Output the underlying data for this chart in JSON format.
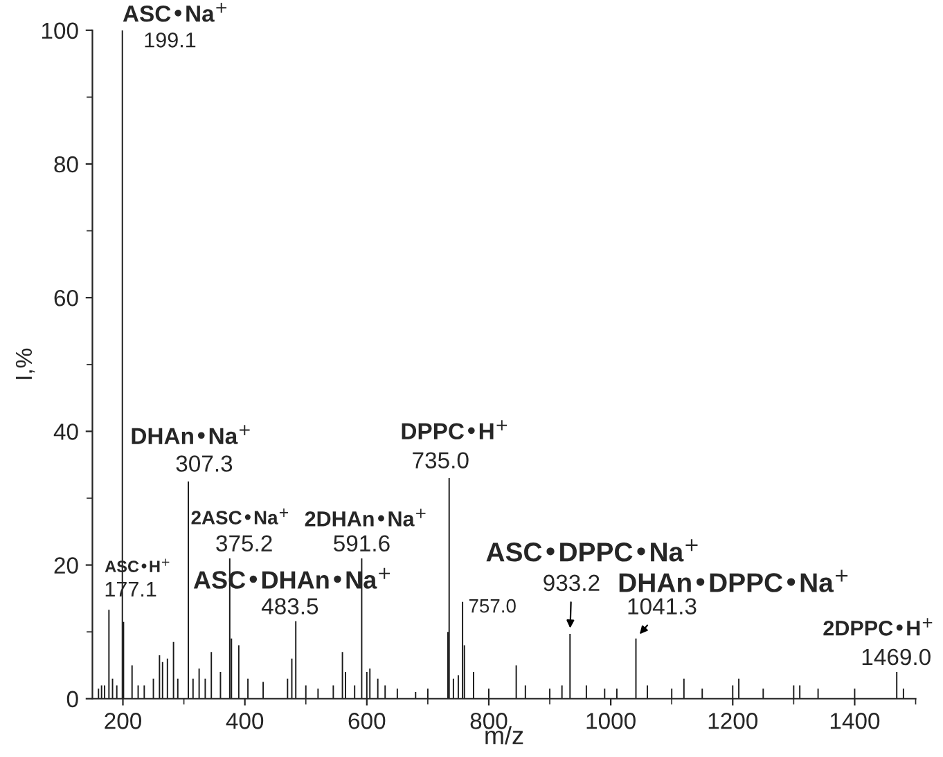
{
  "chart_data": {
    "type": "bar",
    "xlabel": "m/z",
    "ylabel": "I,%",
    "x": [
      160,
      165,
      170,
      177.1,
      183,
      190,
      199.1,
      201,
      215,
      225,
      235,
      250,
      260,
      265,
      273,
      283,
      290,
      307.3,
      315,
      325,
      335,
      345,
      360,
      375.2,
      378,
      390,
      405,
      430,
      470,
      477,
      483.5,
      500,
      520,
      545,
      560,
      565,
      580,
      591.6,
      600,
      605,
      618,
      630,
      650,
      680,
      700,
      733,
      735.0,
      742,
      750,
      757.0,
      760,
      775,
      800,
      845,
      860,
      900,
      920,
      933.2,
      960,
      990,
      1010,
      1041.3,
      1060,
      1100,
      1120,
      1150,
      1200,
      1210,
      1250,
      1300,
      1310,
      1340,
      1400,
      1469.0,
      1480
    ],
    "values": [
      1.5,
      2,
      2,
      13.3,
      3,
      2,
      100,
      11.5,
      5,
      2,
      2,
      3,
      6.5,
      5.5,
      6,
      8.5,
      3,
      32.5,
      3,
      4.5,
      3,
      7,
      4,
      21,
      9,
      8,
      3,
      2.5,
      3,
      6,
      11.6,
      2,
      1.5,
      2,
      7,
      4,
      2,
      21,
      4,
      4.5,
      3,
      2,
      1.5,
      1,
      1.5,
      10,
      33,
      3,
      3.5,
      14.5,
      8,
      4,
      1.5,
      5,
      2,
      1.5,
      2,
      9.7,
      2,
      1.5,
      1.5,
      9,
      2,
      1.5,
      3,
      1.5,
      2,
      3,
      1.5,
      2,
      2,
      1.5,
      1.5,
      4,
      1.5
    ],
    "color": "#1a1a1a",
    "xlim": [
      150,
      1500
    ],
    "xticks": [
      200,
      400,
      600,
      800,
      1000,
      1200,
      1400
    ],
    "ylim": [
      0,
      100
    ],
    "yticks": [
      0,
      20,
      40,
      60,
      80,
      100
    ],
    "grid": false,
    "legend": false,
    "annotations": [
      {
        "text": "ASC•H$^{+}$",
        "x": 177.1,
        "y": 13.3
      },
      {
        "text": "177.1",
        "x": 177.1,
        "y": 13.3
      },
      {
        "text": "ASC•Na$^{+}$",
        "x": 199.1,
        "y": 100
      },
      {
        "text": "199.1",
        "x": 199.1,
        "y": 100
      },
      {
        "text": "DHAn•Na$^{+}$",
        "x": 307.3,
        "y": 32.5
      },
      {
        "text": "307.3",
        "x": 307.3,
        "y": 32.5
      },
      {
        "text": "2ASC•Na$^{+}$",
        "x": 375.2,
        "y": 21
      },
      {
        "text": "375.2",
        "x": 375.2,
        "y": 21
      },
      {
        "text": "ASC•DHAn•Na$^{+}$",
        "x": 483.5,
        "y": 11.6
      },
      {
        "text": "483.5",
        "x": 483.5,
        "y": 11.6
      },
      {
        "text": "2DHAn•Na$^{+}$",
        "x": 591.6,
        "y": 21
      },
      {
        "text": "591.6",
        "x": 591.6,
        "y": 21
      },
      {
        "text": "DPPC•H$^{+}$",
        "x": 735.0,
        "y": 33
      },
      {
        "text": "735.0",
        "x": 735.0,
        "y": 33
      },
      {
        "text": "757.0",
        "x": 757.0,
        "y": 14.5
      },
      {
        "text": "ASC•DPPC•Na$^{+}$",
        "x": 933.2,
        "y": 9.7
      },
      {
        "text": "933.2",
        "x": 933.2,
        "y": 9.7
      },
      {
        "text": "DHAn•DPPC•Na$^{+}$",
        "x": 1041.3,
        "y": 9
      },
      {
        "text": "1041.3",
        "x": 1041.3,
        "y": 9
      },
      {
        "text": "2DPPC•H$^{+}$",
        "x": 1469.0,
        "y": 4
      },
      {
        "text": "1469.0",
        "x": 1469.0,
        "y": 4
      }
    ]
  }
}
